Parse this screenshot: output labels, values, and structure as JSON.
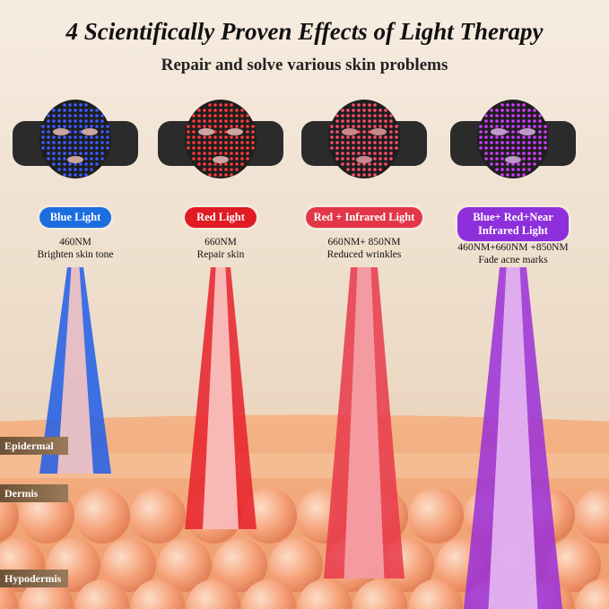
{
  "header": {
    "title": "4 Scientifically Proven Effects of Light Therapy",
    "subtitle": "Repair and solve various skin problems"
  },
  "modes": [
    {
      "label": "Blue Light",
      "wavelength": "460NM",
      "effect": "Brighten skin tone"
    },
    {
      "label": "Red Light",
      "wavelength": "660NM",
      "effect": "Repair skin"
    },
    {
      "label": "Red + Infrared Light",
      "wavelength": "660NM+ 850NM",
      "effect": "Reduced wrinkles"
    },
    {
      "label": "Blue+ Red+Near Infrared Light",
      "wavelength": "460NM+660NM +850NM",
      "effect": "Fade acne marks"
    }
  ],
  "layers": [
    "Epidermal",
    "Dermis",
    "Hypodermis"
  ]
}
